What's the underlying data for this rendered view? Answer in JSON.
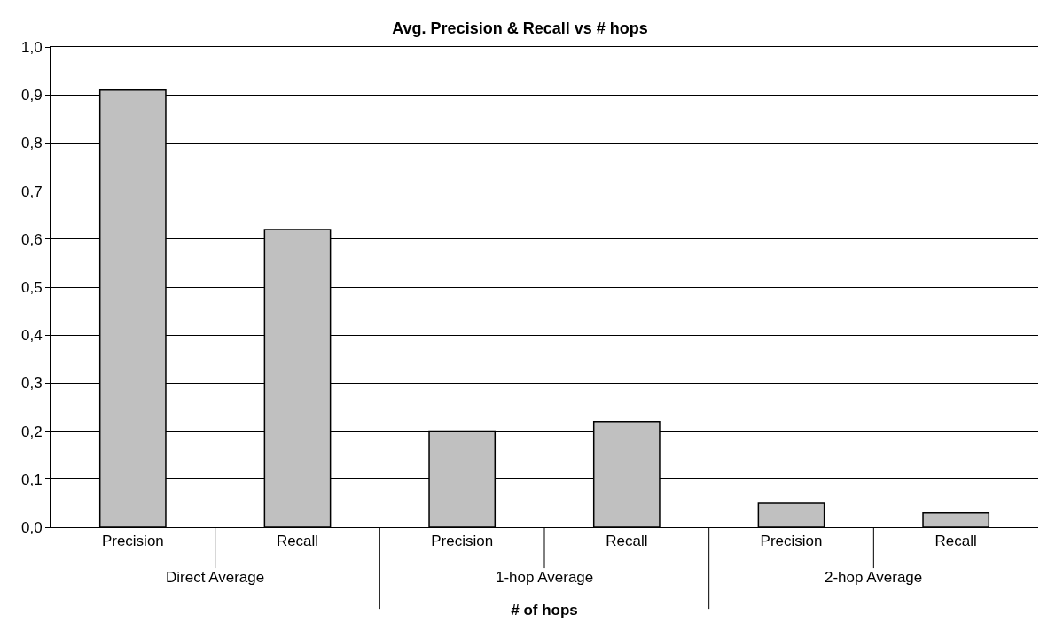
{
  "chart_data": {
    "type": "bar",
    "title": "Avg. Precision & Recall vs # hops",
    "xlabel": "# of hops",
    "categories": [
      "Precision",
      "Recall",
      "Precision",
      "Recall",
      "Precision",
      "Recall"
    ],
    "values": [
      0.91,
      0.62,
      0.2,
      0.22,
      0.05,
      0.03
    ],
    "color": "#c0c0c0",
    "ylim": [
      0,
      1
    ],
    "yticks": [
      {
        "value": 0,
        "label": "0,0"
      },
      {
        "value": 0.1,
        "label": "0,1"
      },
      {
        "value": 0.2,
        "label": "0,2"
      },
      {
        "value": 0.3,
        "label": "0,3"
      },
      {
        "value": 0.4,
        "label": "0,4"
      },
      {
        "value": 0.5,
        "label": "0,5"
      },
      {
        "value": 0.6,
        "label": "0,6"
      },
      {
        "value": 0.7,
        "label": "0,7"
      },
      {
        "value": 0.8,
        "label": "0,8"
      },
      {
        "value": 0.9,
        "label": "0,9"
      },
      {
        "value": 1,
        "label": "1,0"
      }
    ],
    "grid": "y",
    "annotations": [
      "Direct Average",
      "1-hop Average",
      "2-hop Average"
    ]
  }
}
